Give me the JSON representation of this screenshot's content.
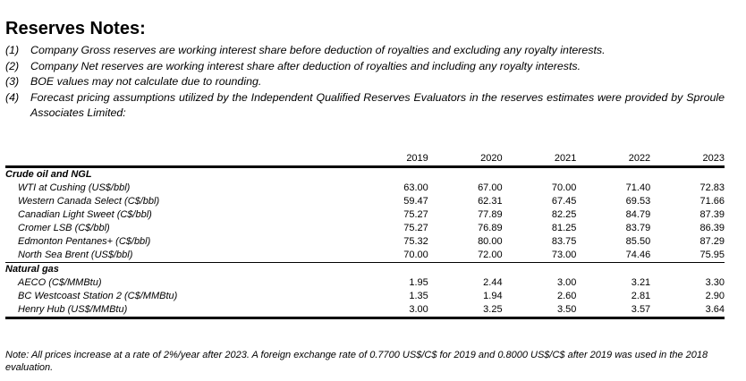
{
  "title": "Reserves Notes:",
  "notes": [
    {
      "num": "(1)",
      "text": "Company Gross reserves are working interest share before deduction of royalties and excluding any royalty interests."
    },
    {
      "num": "(2)",
      "text": "Company Net reserves are working interest share after deduction of royalties and including any royalty interests."
    },
    {
      "num": "(3)",
      "text": "BOE values may not calculate due to rounding."
    },
    {
      "num": "(4)",
      "text": "Forecast pricing assumptions utilized by the Independent Qualified Reserves Evaluators in the reserves estimates were provided by Sproule Associates Limited:"
    }
  ],
  "table": {
    "years": [
      "2019",
      "2020",
      "2021",
      "2022",
      "2023"
    ],
    "sections": [
      {
        "label": "Crude oil and NGL",
        "rows": [
          {
            "label": "WTI at Cushing (US$/bbl)",
            "values": [
              "63.00",
              "67.00",
              "70.00",
              "71.40",
              "72.83"
            ]
          },
          {
            "label": "Western Canada Select (C$/bbl)",
            "values": [
              "59.47",
              "62.31",
              "67.45",
              "69.53",
              "71.66"
            ]
          },
          {
            "label": "Canadian Light Sweet (C$/bbl)",
            "values": [
              "75.27",
              "77.89",
              "82.25",
              "84.79",
              "87.39"
            ]
          },
          {
            "label": "Cromer LSB (C$/bbl)",
            "values": [
              "75.27",
              "76.89",
              "81.25",
              "83.79",
              "86.39"
            ]
          },
          {
            "label": "Edmonton Pentanes+ (C$/bbl)",
            "values": [
              "75.32",
              "80.00",
              "83.75",
              "85.50",
              "87.29"
            ]
          },
          {
            "label": "North Sea Brent (US$/bbl)",
            "values": [
              "70.00",
              "72.00",
              "73.00",
              "74.46",
              "75.95"
            ]
          }
        ]
      },
      {
        "label": "Natural gas",
        "rows": [
          {
            "label": "AECO (C$/MMBtu)",
            "values": [
              "1.95",
              "2.44",
              "3.00",
              "3.21",
              "3.30"
            ]
          },
          {
            "label": "BC Westcoast Station 2 (C$/MMBtu)",
            "values": [
              "1.35",
              "1.94",
              "2.60",
              "2.81",
              "2.90"
            ]
          },
          {
            "label": "Henry Hub (US$/MMBtu)",
            "values": [
              "3.00",
              "3.25",
              "3.50",
              "3.57",
              "3.64"
            ]
          }
        ]
      }
    ]
  },
  "footnote": "Note: All prices increase at a rate of 2%/year after 2023. A foreign exchange rate of 0.7700 US$/C$ for 2019 and 0.8000 US$/C$ after 2019 was used in the 2018 evaluation."
}
